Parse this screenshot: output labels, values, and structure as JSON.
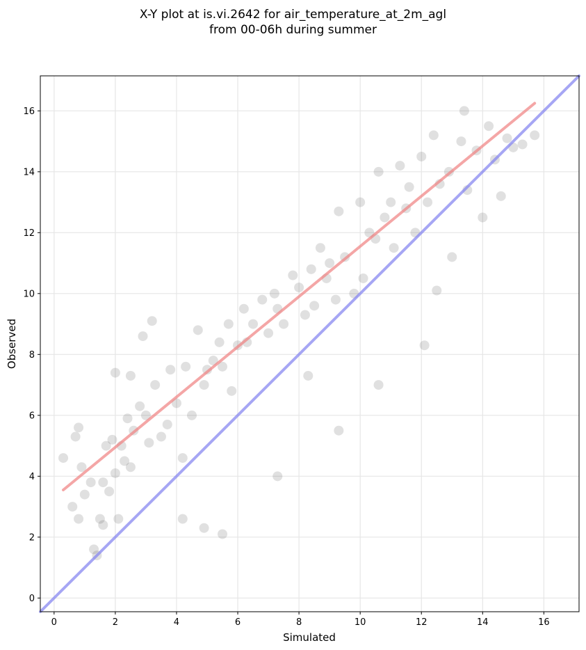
{
  "chart_data": {
    "type": "scatter",
    "title": "X-Y plot at is.vi.2642 for air_temperature_at_2m_agl\nfrom 00-06h during summer",
    "xlabel": "Simulated",
    "ylabel": "Observed",
    "xlim": [
      -0.45,
      17.15
    ],
    "ylim": [
      -0.45,
      17.15
    ],
    "xticks": [
      0,
      2,
      4,
      6,
      8,
      10,
      12,
      14,
      16
    ],
    "yticks": [
      0,
      2,
      4,
      6,
      8,
      10,
      12,
      14,
      16
    ],
    "grid": true,
    "point_color": "#404040",
    "fit_line": {
      "color": "#f08080",
      "x": [
        0.3,
        15.7
      ],
      "y": [
        3.55,
        16.25
      ]
    },
    "identity_line": {
      "color": "#8080f0",
      "x": [
        -0.45,
        17.15
      ],
      "y": [
        -0.45,
        17.15
      ]
    },
    "series": [
      {
        "x": [
          0.3,
          0.6,
          0.7,
          0.8,
          0.8,
          0.9,
          1.0,
          1.2,
          1.3,
          1.4,
          1.5,
          1.6,
          1.6,
          1.7,
          1.8,
          1.9,
          2.0,
          2.0,
          2.1,
          2.2,
          2.3,
          2.4,
          2.5,
          2.5,
          2.6,
          2.8,
          2.9,
          3.0,
          3.1,
          3.2,
          3.3,
          3.5,
          3.7,
          3.8,
          4.0,
          4.2,
          4.3,
          4.5,
          4.7,
          4.9,
          5.0,
          5.2,
          5.4,
          5.5,
          5.7,
          5.8,
          6.0,
          6.2,
          6.3,
          6.5,
          6.8,
          7.0,
          7.2,
          7.3,
          7.5,
          7.8,
          8.0,
          8.2,
          8.4,
          8.5,
          8.7,
          8.9,
          9.0,
          9.2,
          9.3,
          9.5,
          9.8,
          10.0,
          10.1,
          10.3,
          10.5,
          10.6,
          10.8,
          11.0,
          11.1,
          11.3,
          11.5,
          11.6,
          11.8,
          12.0,
          12.2,
          12.4,
          12.6,
          12.9,
          13.0,
          13.3,
          13.5,
          13.8,
          14.0,
          14.2,
          14.4,
          14.6,
          14.8,
          15.0,
          15.3,
          15.7,
          4.2,
          4.9,
          5.5,
          7.3,
          8.3,
          9.3,
          10.6,
          12.1,
          12.5,
          13.4
        ],
        "y": [
          4.6,
          3.0,
          5.3,
          2.6,
          5.6,
          4.3,
          3.4,
          3.8,
          1.6,
          1.4,
          2.6,
          2.4,
          3.8,
          5.0,
          3.5,
          5.2,
          4.1,
          7.4,
          2.6,
          5.0,
          4.5,
          5.9,
          4.3,
          7.3,
          5.5,
          6.3,
          8.6,
          6.0,
          5.1,
          9.1,
          7.0,
          5.3,
          5.7,
          7.5,
          6.4,
          4.6,
          7.6,
          6.0,
          8.8,
          7.0,
          7.5,
          7.8,
          8.4,
          7.6,
          9.0,
          6.8,
          8.3,
          9.5,
          8.4,
          9.0,
          9.8,
          8.7,
          10.0,
          9.5,
          9.0,
          10.6,
          10.2,
          9.3,
          10.8,
          9.6,
          11.5,
          10.5,
          11.0,
          9.8,
          12.7,
          11.2,
          10.0,
          13.0,
          10.5,
          12.0,
          11.8,
          14.0,
          12.5,
          13.0,
          11.5,
          14.2,
          12.8,
          13.5,
          12.0,
          14.5,
          13.0,
          15.2,
          13.6,
          14.0,
          11.2,
          15.0,
          13.4,
          14.7,
          12.5,
          15.5,
          14.4,
          13.2,
          15.1,
          14.8,
          14.9,
          15.2,
          2.6,
          2.3,
          2.1,
          4.0,
          7.3,
          5.5,
          7.0,
          8.3,
          10.1,
          16.0
        ]
      }
    ]
  }
}
